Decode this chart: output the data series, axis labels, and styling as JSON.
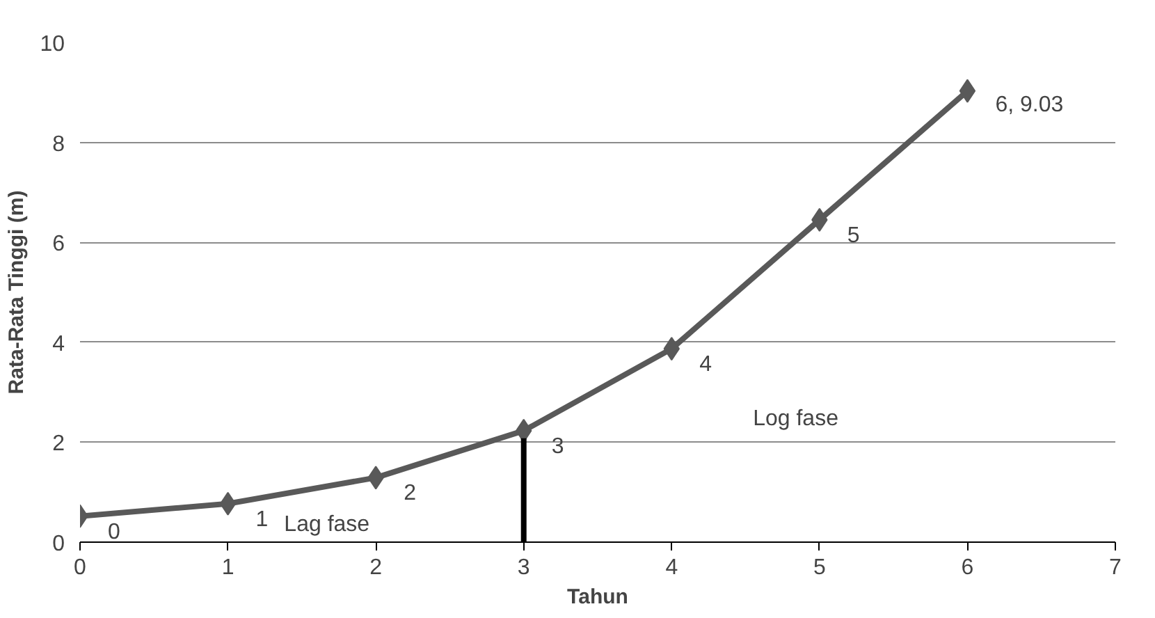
{
  "chart_data": {
    "type": "line",
    "xlabel": "Tahun",
    "ylabel": "Rata-Rata Tinggi (m)",
    "x": [
      0,
      1,
      2,
      3,
      4,
      5,
      6
    ],
    "series": [
      {
        "color": "#595959",
        "values": [
          0.52,
          0.77,
          1.29,
          2.23,
          3.87,
          6.45,
          9.03
        ]
      }
    ],
    "xlim": [
      0,
      7
    ],
    "xticks": [
      0,
      1,
      2,
      3,
      4,
      5,
      6,
      7
    ],
    "ylim": [
      0,
      10
    ],
    "yticks": [
      0,
      2,
      4,
      6,
      8,
      10
    ],
    "grid": "y",
    "marker": "diamond",
    "line_style": "solid",
    "ref_lines": [
      {
        "axis": "x",
        "value": 3,
        "color": "#000000"
      }
    ],
    "annotations": [
      "Lag fase",
      "Log fase",
      {
        "text": "0",
        "x": 0,
        "y": 0.52
      },
      {
        "text": "1",
        "x": 1,
        "y": 0.77
      },
      {
        "text": "2",
        "x": 2,
        "y": 1.29
      },
      {
        "text": "3",
        "x": 3,
        "y": 2.23
      },
      {
        "text": "4",
        "x": 4,
        "y": 3.87
      },
      {
        "text": "5",
        "x": 5,
        "y": 6.45
      },
      {
        "text": "6, 9.03",
        "x": 6,
        "y": 9.03
      }
    ]
  }
}
